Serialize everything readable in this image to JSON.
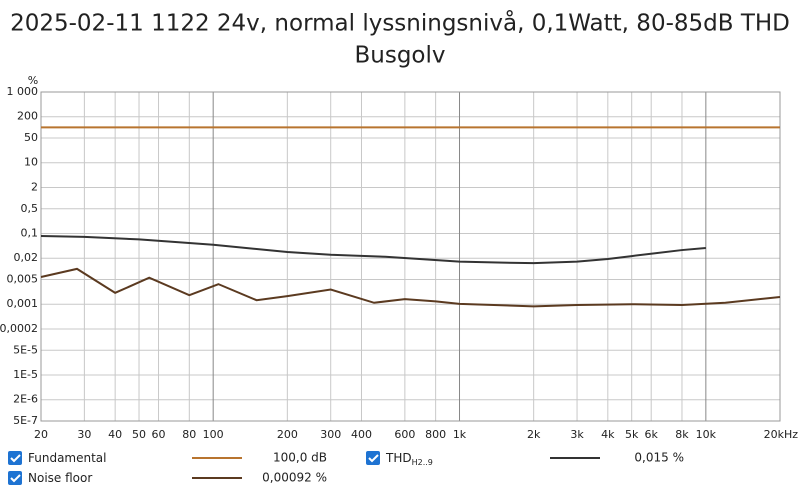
{
  "chart_data": {
    "type": "line",
    "title_lines": [
      "2025-02-11 1122 24v, normal lyssningsnivå, 0,1Watt, 80-85dB THD",
      "Busgolv"
    ],
    "y_label": "%",
    "xlog": true,
    "ylog": true,
    "grid": true,
    "xlim": [
      20,
      20000
    ],
    "ylim": [
      5e-07,
      1000
    ],
    "xticks": [
      20,
      30,
      40,
      50,
      60,
      80,
      100,
      200,
      300,
      400,
      600,
      800,
      {
        "value": 1000,
        "label": "1k"
      },
      {
        "value": 2000,
        "label": "2k"
      },
      {
        "value": 3000,
        "label": "3k"
      },
      {
        "value": 4000,
        "label": "4k"
      },
      {
        "value": 5000,
        "label": "5k"
      },
      {
        "value": 6000,
        "label": "6k"
      },
      {
        "value": 8000,
        "label": "8k"
      },
      {
        "value": 10000,
        "label": "10k"
      },
      {
        "value": 20000,
        "label": "20kHz"
      }
    ],
    "yticks": [
      {
        "value": 1000,
        "label": "1 000"
      },
      200,
      50,
      10,
      2,
      {
        "value": 0.5,
        "label": "0,5"
      },
      {
        "value": 0.1,
        "label": "0,1"
      },
      {
        "value": 0.02,
        "label": "0,02"
      },
      {
        "value": 0.005,
        "label": "0,005"
      },
      {
        "value": 0.001,
        "label": "0,001"
      },
      {
        "value": 0.0002,
        "label": "0,0002"
      },
      {
        "value": 5e-05,
        "label": "5E-5"
      },
      {
        "value": 1e-05,
        "label": "1E-5"
      },
      {
        "value": 2e-06,
        "label": "2E-6"
      },
      {
        "value": 5e-07,
        "label": "5E-7"
      }
    ],
    "series": [
      {
        "name": "Fundamental",
        "color": "#b8742f",
        "legend_value": "100,0 dB",
        "x": [
          20,
          20000
        ],
        "values": [
          100,
          100
        ]
      },
      {
        "name": "Noise floor",
        "color": "#5b3a20",
        "legend_value": "0,00092 %",
        "x": [
          20,
          28,
          40,
          55,
          80,
          105,
          150,
          200,
          300,
          450,
          600,
          800,
          1000,
          2000,
          3000,
          5000,
          8000,
          12000,
          20000
        ],
        "values": [
          0.0059,
          0.01,
          0.0021,
          0.0056,
          0.0018,
          0.0037,
          0.0013,
          0.0017,
          0.0026,
          0.0011,
          0.0014,
          0.0012,
          0.00102,
          0.00087,
          0.00095,
          0.001,
          0.00095,
          0.0011,
          0.0016
        ]
      },
      {
        "name": "THD",
        "subscript": "H2..9",
        "color": "#333333",
        "legend_value": "0,015 %",
        "x": [
          20,
          30,
          50,
          100,
          200,
          300,
          500,
          1000,
          1500,
          2000,
          3000,
          4000,
          5000,
          8000,
          10000
        ],
        "values": [
          0.085,
          0.08,
          0.068,
          0.048,
          0.03,
          0.025,
          0.022,
          0.016,
          0.015,
          0.0145,
          0.016,
          0.019,
          0.023,
          0.034,
          0.039
        ]
      }
    ]
  }
}
